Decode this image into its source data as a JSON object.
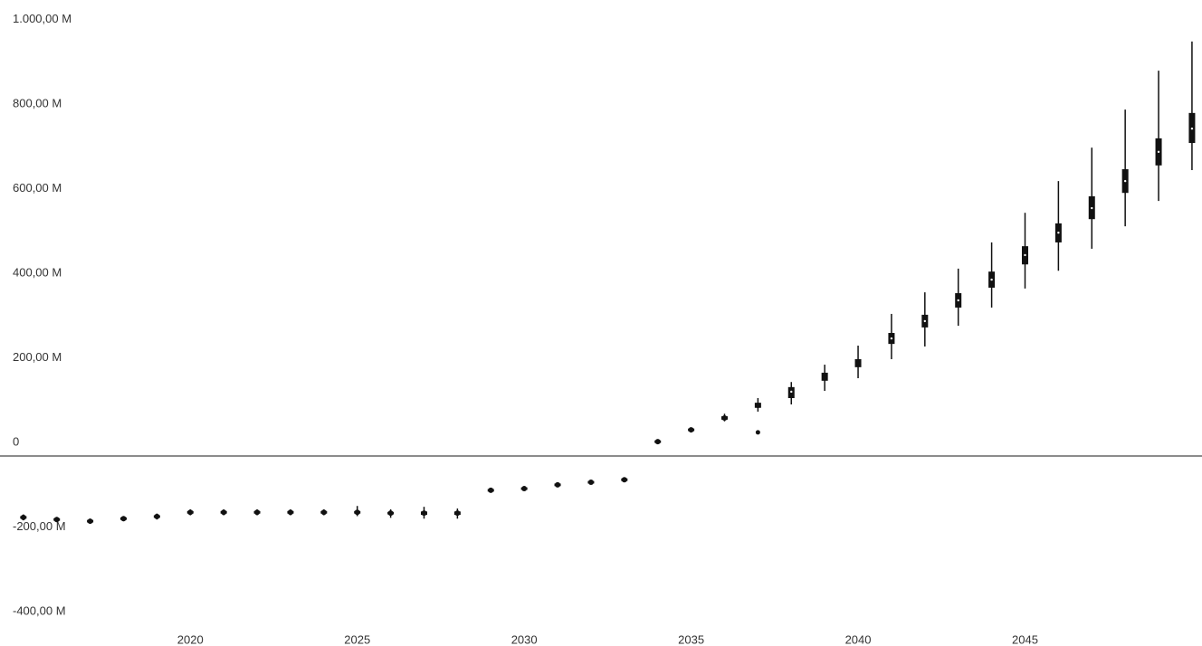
{
  "chart_data": {
    "type": "box",
    "x": [
      2015,
      2016,
      2017,
      2018,
      2019,
      2020,
      2021,
      2022,
      2023,
      2024,
      2025,
      2026,
      2027,
      2028,
      2029,
      2030,
      2031,
      2032,
      2033,
      2034,
      2035,
      2036,
      2037,
      2038,
      2039,
      2040,
      2041,
      2042,
      2043,
      2044,
      2045,
      2046,
      2047,
      2048,
      2049,
      2050
    ],
    "series": [
      {
        "color": "#111111",
        "min": [
          -152,
          -156,
          -160,
          -154,
          -150,
          -140,
          -140,
          -140,
          -140,
          -140,
          -142,
          -146,
          -148,
          -148,
          -86,
          -82,
          -73,
          -67,
          -61,
          30,
          57,
          82,
          105,
          122,
          154,
          184,
          229,
          259,
          308,
          351,
          396,
          438,
          490,
          543,
          603,
          676
        ],
        "q1": [
          -148,
          -153,
          -157,
          -151,
          -146,
          -136,
          -136,
          -136,
          -136,
          -136,
          -136,
          -138,
          -139,
          -139,
          -84,
          -80,
          -71,
          -65,
          -59,
          31,
          59,
          86,
          114,
          137,
          178,
          210,
          265,
          304,
          351,
          398,
          453,
          505,
          560,
          622,
          687,
          740
        ],
        "median": [
          -145,
          -150,
          -154,
          -148,
          -143,
          -133,
          -133,
          -133,
          -133,
          -133,
          -133,
          -135,
          -135,
          -135,
          -81,
          -77,
          -68,
          -62,
          -56,
          34,
          62,
          90,
          120,
          152,
          186,
          220,
          278,
          319,
          368,
          417,
          475,
          528,
          586,
          650,
          719,
          774
        ],
        "q3": [
          -142,
          -147,
          -151,
          -145,
          -140,
          -130,
          -130,
          -130,
          -130,
          -130,
          -130,
          -132,
          -131,
          -131,
          -78,
          -74,
          -65,
          -59,
          -53,
          37,
          65,
          94,
          126,
          163,
          197,
          229,
          291,
          334,
          385,
          436,
          496,
          550,
          614,
          678,
          751,
          811
        ],
        "max": [
          -138,
          -144,
          -148,
          -142,
          -136,
          -126,
          -126,
          -126,
          -126,
          -126,
          -118,
          -126,
          -120,
          -124,
          -76,
          -72,
          -63,
          -57,
          -51,
          38,
          67,
          100,
          137,
          175,
          216,
          261,
          336,
          387,
          443,
          505,
          575,
          650,
          729,
          819,
          911,
          980
        ]
      }
    ],
    "outliers": [
      {
        "x": 2037,
        "value": 56
      }
    ],
    "xlim": [
      2014.3,
      2050.3
    ],
    "xticks": [
      2020,
      2025,
      2030,
      2035,
      2040,
      2045
    ],
    "ylim": [
      -449,
      1078
    ],
    "yticks": [
      {
        "value": -400,
        "label": "-400,00 M"
      },
      {
        "value": -200,
        "label": "-200,00 M"
      },
      0,
      {
        "value": 200,
        "label": "200,00 M"
      },
      {
        "value": 400,
        "label": "400,00 M"
      },
      {
        "value": 600,
        "label": "600,00 M"
      },
      {
        "value": 800,
        "label": "800,00 M"
      },
      {
        "value": 1000,
        "label": "1.000,00 M"
      }
    ],
    "grid": false
  }
}
